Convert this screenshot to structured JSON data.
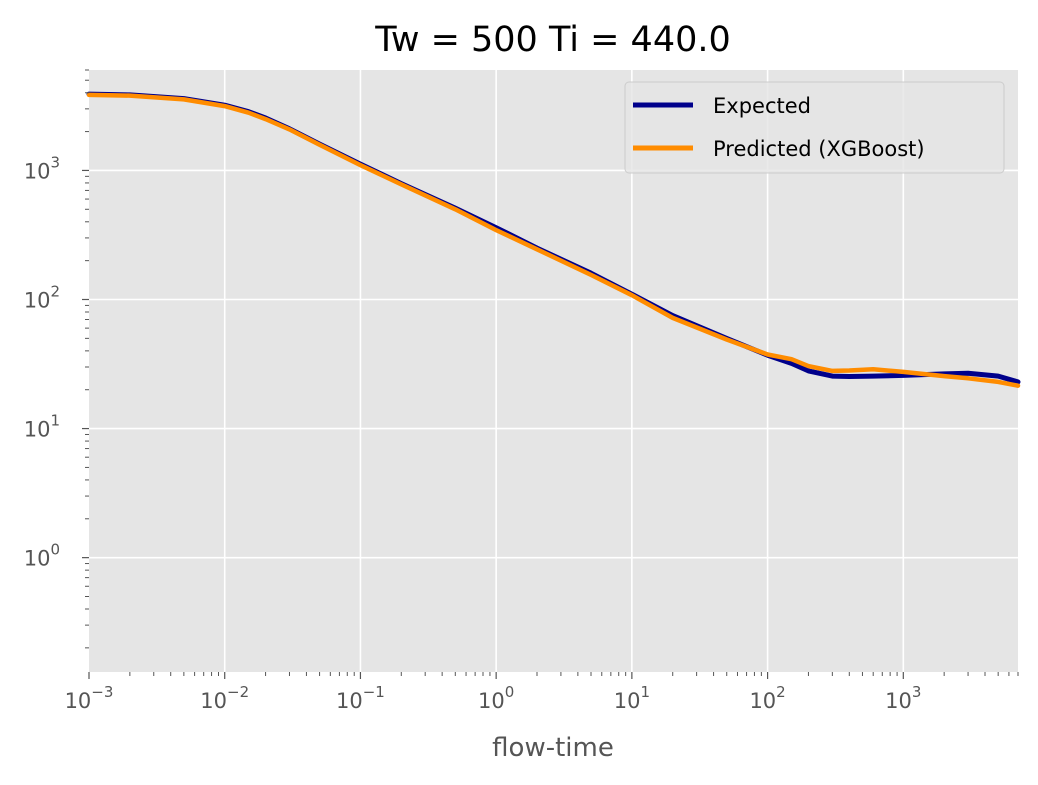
{
  "chart_data": {
    "type": "line",
    "title": "Tw = 500 Ti = 440.0",
    "xlabel": "flow-time",
    "ylabel": "",
    "xscale": "log",
    "yscale": "log",
    "xlim": [
      0.001,
      7000
    ],
    "ylim": [
      0.13,
      6000
    ],
    "grid": true,
    "legend_position": "top-right",
    "x_ticks": [
      {
        "base": "10",
        "exp": "−3",
        "value": 0.001
      },
      {
        "base": "10",
        "exp": "−2",
        "value": 0.01
      },
      {
        "base": "10",
        "exp": "−1",
        "value": 0.1
      },
      {
        "base": "10",
        "exp": "0",
        "value": 1
      },
      {
        "base": "10",
        "exp": "1",
        "value": 10
      },
      {
        "base": "10",
        "exp": "2",
        "value": 100
      },
      {
        "base": "10",
        "exp": "3",
        "value": 1000
      }
    ],
    "y_ticks": [
      {
        "base": "10",
        "exp": "0",
        "value": 1
      },
      {
        "base": "10",
        "exp": "1",
        "value": 10
      },
      {
        "base": "10",
        "exp": "2",
        "value": 100
      },
      {
        "base": "10",
        "exp": "3",
        "value": 1000
      }
    ],
    "series": [
      {
        "name": "Expected",
        "color": "#00008b",
        "x": [
          0.001,
          0.002,
          0.005,
          0.01,
          0.015,
          0.02,
          0.03,
          0.05,
          0.1,
          0.2,
          0.5,
          1,
          2,
          5,
          10,
          20,
          50,
          100,
          150,
          200,
          300,
          400,
          600,
          1000,
          2000,
          3000,
          5000,
          7000
        ],
        "y": [
          3900,
          3850,
          3600,
          3200,
          2850,
          2550,
          2100,
          1600,
          1120,
          790,
          510,
          360,
          250,
          160,
          110,
          75,
          50,
          37,
          32,
          28,
          25.5,
          25.3,
          25.5,
          25.8,
          26.5,
          26.8,
          25.5,
          23
        ]
      },
      {
        "name": "Predicted (XGBoost)",
        "color": "#ff8c00",
        "x": [
          0.001,
          0.002,
          0.005,
          0.01,
          0.015,
          0.02,
          0.03,
          0.05,
          0.1,
          0.2,
          0.5,
          1,
          2,
          5,
          10,
          20,
          50,
          100,
          150,
          200,
          300,
          400,
          600,
          1000,
          2000,
          3000,
          5000,
          7000
        ],
        "y": [
          3850,
          3800,
          3550,
          3150,
          2800,
          2500,
          2080,
          1580,
          1100,
          780,
          500,
          345,
          245,
          155,
          108,
          72,
          49,
          37.5,
          34.5,
          30.5,
          28,
          28.2,
          28.8,
          27.5,
          25.5,
          24.5,
          23,
          21.5
        ]
      }
    ]
  }
}
